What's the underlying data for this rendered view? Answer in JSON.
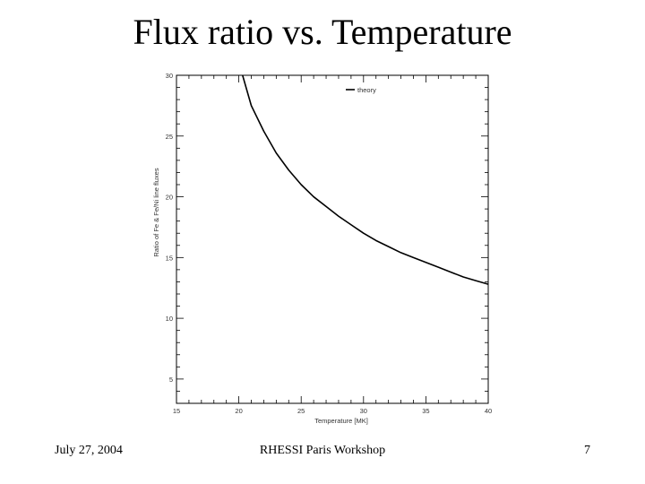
{
  "slide": {
    "title": "Flux ratio vs. Temperature",
    "footer_left": "July 27, 2004",
    "footer_center": "RHESSI Paris Workshop",
    "footer_right": "7"
  },
  "chart_data": {
    "type": "line",
    "title": "",
    "xlabel": "Temperature [MK]",
    "ylabel": "Ratio of Fe & Fe/Ni line fluxes",
    "xlim": [
      15,
      40
    ],
    "ylim": [
      3,
      30
    ],
    "xticks": [
      15,
      20,
      25,
      30,
      35,
      40
    ],
    "yticks": [
      5,
      10,
      15,
      20,
      25,
      30
    ],
    "grid": false,
    "legend": "top-right",
    "series": [
      {
        "name": "theory",
        "color": "#000000",
        "x": [
          20.3,
          21,
          22,
          23,
          24,
          25,
          26,
          27,
          28,
          29,
          30,
          31,
          32,
          33,
          34,
          35,
          36,
          37,
          38,
          39,
          40
        ],
        "y": [
          30.0,
          27.5,
          25.4,
          23.6,
          22.2,
          21.0,
          20.0,
          19.2,
          18.4,
          17.7,
          17.0,
          16.4,
          15.9,
          15.4,
          15.0,
          14.6,
          14.2,
          13.8,
          13.4,
          13.1,
          12.8
        ]
      }
    ]
  }
}
